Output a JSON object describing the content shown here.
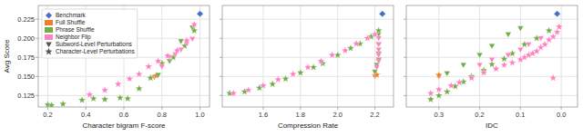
{
  "chart_data": [
    {
      "type": "scatter",
      "xlabel": "Character bigram F-score",
      "ylabel": "Avg Score",
      "xlim": [
        0.15,
        1.05
      ],
      "ylim": [
        0.11,
        0.243
      ],
      "xticks": [
        0.2,
        0.4,
        0.6,
        0.8,
        {
          "value": 1.0,
          "label": "1.0"
        }
      ],
      "yticks": [
        0.125,
        {
          "value": 0.15,
          "label": "0.150"
        },
        0.175,
        {
          "value": 0.2,
          "label": "0.200"
        },
        0.225
      ],
      "grid": true,
      "legend": "upper left",
      "legend_entries": [
        {
          "label": "Benchmark",
          "color": "#4472c4",
          "marker": "diamond"
        },
        {
          "label": "Full Shuffle",
          "color": "#ed7d31"
        },
        {
          "label": "Phrase Shuffle",
          "color": "#70ad47"
        },
        {
          "label": "Neighbor Flip",
          "color": "#ff80c0"
        },
        {
          "label": "Subword-Level Perturbations",
          "color": "#555555",
          "marker": "triangle-down"
        },
        {
          "label": "Character-Level Perturbations",
          "color": "#555555",
          "marker": "star"
        }
      ],
      "series": [
        {
          "color": "#4472c4",
          "marker": "diamond",
          "x": [
            1.0
          ],
          "values": [
            0.232
          ]
        },
        {
          "color": "#ed7d31",
          "marker": "triangle-down",
          "x": [
            0.76
          ],
          "values": [
            0.149
          ]
        },
        {
          "color": "#ed7d31",
          "marker": "star",
          "x": [
            0.77
          ],
          "values": [
            0.151
          ]
        },
        {
          "color": "#70ad47",
          "marker": "triangle-down",
          "x": [
            0.78,
            0.84,
            0.9,
            0.96
          ],
          "values": [
            0.152,
            0.17,
            0.196,
            0.214
          ]
        },
        {
          "color": "#70ad47",
          "marker": "star",
          "x": [
            0.2,
            0.22,
            0.28,
            0.38,
            0.44,
            0.5,
            0.58,
            0.62,
            0.68,
            0.74,
            0.8,
            0.86,
            0.92,
            0.97
          ],
          "values": [
            0.113,
            0.112,
            0.114,
            0.119,
            0.121,
            0.12,
            0.122,
            0.121,
            0.134,
            0.148,
            0.167,
            0.175,
            0.19,
            0.21
          ]
        },
        {
          "color": "#ff80c0",
          "marker": "triangle-down",
          "x": [
            0.8,
            0.84,
            0.87,
            0.9,
            0.93,
            0.96
          ],
          "values": [
            0.163,
            0.175,
            0.179,
            0.185,
            0.193,
            0.199
          ]
        },
        {
          "color": "#ff80c0",
          "marker": "star",
          "x": [
            0.42,
            0.5,
            0.57,
            0.63,
            0.68,
            0.73,
            0.78,
            0.83,
            0.88,
            0.93,
            0.97
          ],
          "values": [
            0.126,
            0.132,
            0.14,
            0.147,
            0.153,
            0.163,
            0.17,
            0.177,
            0.184,
            0.197,
            0.218
          ]
        }
      ]
    },
    {
      "type": "scatter",
      "xlabel": "Compression Rate",
      "xlim": [
        1.38,
        2.3
      ],
      "ylim": [
        0.11,
        0.243
      ],
      "xticks": [
        1.6,
        1.8,
        {
          "value": 2.0,
          "label": "2.0"
        },
        2.2
      ],
      "yticks": [
        0.125,
        0.15,
        0.175,
        0.2,
        0.225
      ],
      "tick_labels": "x",
      "grid": true,
      "series": [
        {
          "color": "#4472c4",
          "marker": "diamond",
          "x": [
            2.24
          ],
          "values": [
            0.232
          ]
        },
        {
          "color": "#ed7d31",
          "marker": "triangle-down",
          "x": [
            2.2
          ],
          "values": [
            0.15
          ]
        },
        {
          "color": "#ed7d31",
          "marker": "star",
          "x": [
            2.21
          ],
          "values": [
            0.152
          ]
        },
        {
          "color": "#70ad47",
          "marker": "triangle-down",
          "x": [
            2.2,
            2.21,
            2.22,
            2.22,
            2.22,
            2.22
          ],
          "values": [
            0.156,
            0.165,
            0.172,
            0.18,
            0.192,
            0.205
          ]
        },
        {
          "color": "#70ad47",
          "marker": "star",
          "x": [
            1.42,
            1.5,
            1.58,
            1.65,
            1.72,
            1.8,
            1.87,
            1.92,
            2.0,
            2.07,
            2.12,
            2.18,
            2.22
          ],
          "values": [
            0.128,
            0.13,
            0.135,
            0.14,
            0.147,
            0.155,
            0.162,
            0.167,
            0.178,
            0.187,
            0.193,
            0.202,
            0.21
          ]
        },
        {
          "color": "#ff80c0",
          "marker": "triangle-down",
          "x": [
            2.21,
            2.22,
            2.22,
            2.22,
            2.22,
            2.22
          ],
          "values": [
            0.162,
            0.17,
            0.178,
            0.185,
            0.192,
            0.2
          ]
        },
        {
          "color": "#ff80c0",
          "marker": "star",
          "x": [
            1.44,
            1.52,
            1.6,
            1.68,
            1.76,
            1.84,
            1.91,
            1.97,
            2.04,
            2.1,
            2.16,
            2.2
          ],
          "values": [
            0.128,
            0.132,
            0.138,
            0.146,
            0.153,
            0.162,
            0.17,
            0.178,
            0.184,
            0.193,
            0.2,
            0.205
          ]
        }
      ]
    },
    {
      "type": "scatter",
      "xlabel": "IDC",
      "xlim": [
        0.38,
        -0.04
      ],
      "ylim": [
        0.11,
        0.243
      ],
      "xticks": [
        0.3,
        0.2,
        0.1,
        {
          "value": 0.0,
          "label": "0.0"
        }
      ],
      "yticks": [
        0.125,
        0.15,
        0.175,
        0.2,
        0.225
      ],
      "tick_labels": "x",
      "grid": true,
      "series": [
        {
          "color": "#4472c4",
          "marker": "diamond",
          "x": [
            0.01
          ],
          "values": [
            0.232
          ]
        },
        {
          "color": "#ed7d31",
          "marker": "triangle-down",
          "x": [
            0.3
          ],
          "values": [
            0.15
          ]
        },
        {
          "color": "#ed7d31",
          "marker": "star",
          "x": [
            0.3
          ],
          "values": [
            0.152
          ]
        },
        {
          "color": "#70ad47",
          "marker": "triangle-down",
          "x": [
            0.28,
            0.24,
            0.2,
            0.17,
            0.13,
            0.1
          ],
          "values": [
            0.154,
            0.165,
            0.178,
            0.19,
            0.205,
            0.213
          ]
        },
        {
          "color": "#70ad47",
          "marker": "star",
          "x": [
            0.32,
            0.3,
            0.28,
            0.26,
            0.24,
            0.22,
            0.19,
            0.17,
            0.14,
            0.12,
            0.09,
            0.06,
            0.03
          ],
          "values": [
            0.12,
            0.125,
            0.13,
            0.137,
            0.143,
            0.15,
            0.158,
            0.166,
            0.173,
            0.18,
            0.192,
            0.2,
            0.21
          ]
        },
        {
          "color": "#ff80c0",
          "marker": "triangle-down",
          "x": [
            0.2,
            0.17,
            0.13,
            0.1,
            0.08,
            0.05
          ],
          "values": [
            0.165,
            0.172,
            0.178,
            0.185,
            0.192,
            0.2
          ]
        },
        {
          "color": "#ff80c0",
          "marker": "star",
          "x": [
            0.32,
            0.3,
            0.27,
            0.25,
            0.22,
            0.19,
            0.16,
            0.14,
            0.12,
            0.1,
            0.09,
            0.08,
            0.07,
            0.06,
            0.05,
            0.04,
            0.03,
            0.02,
            0.01,
            0.005,
            0.02
          ],
          "values": [
            0.128,
            0.133,
            0.138,
            0.142,
            0.148,
            0.155,
            0.16,
            0.165,
            0.168,
            0.172,
            0.175,
            0.178,
            0.18,
            0.183,
            0.188,
            0.192,
            0.198,
            0.202,
            0.208,
            0.215,
            0.148
          ]
        }
      ]
    }
  ]
}
